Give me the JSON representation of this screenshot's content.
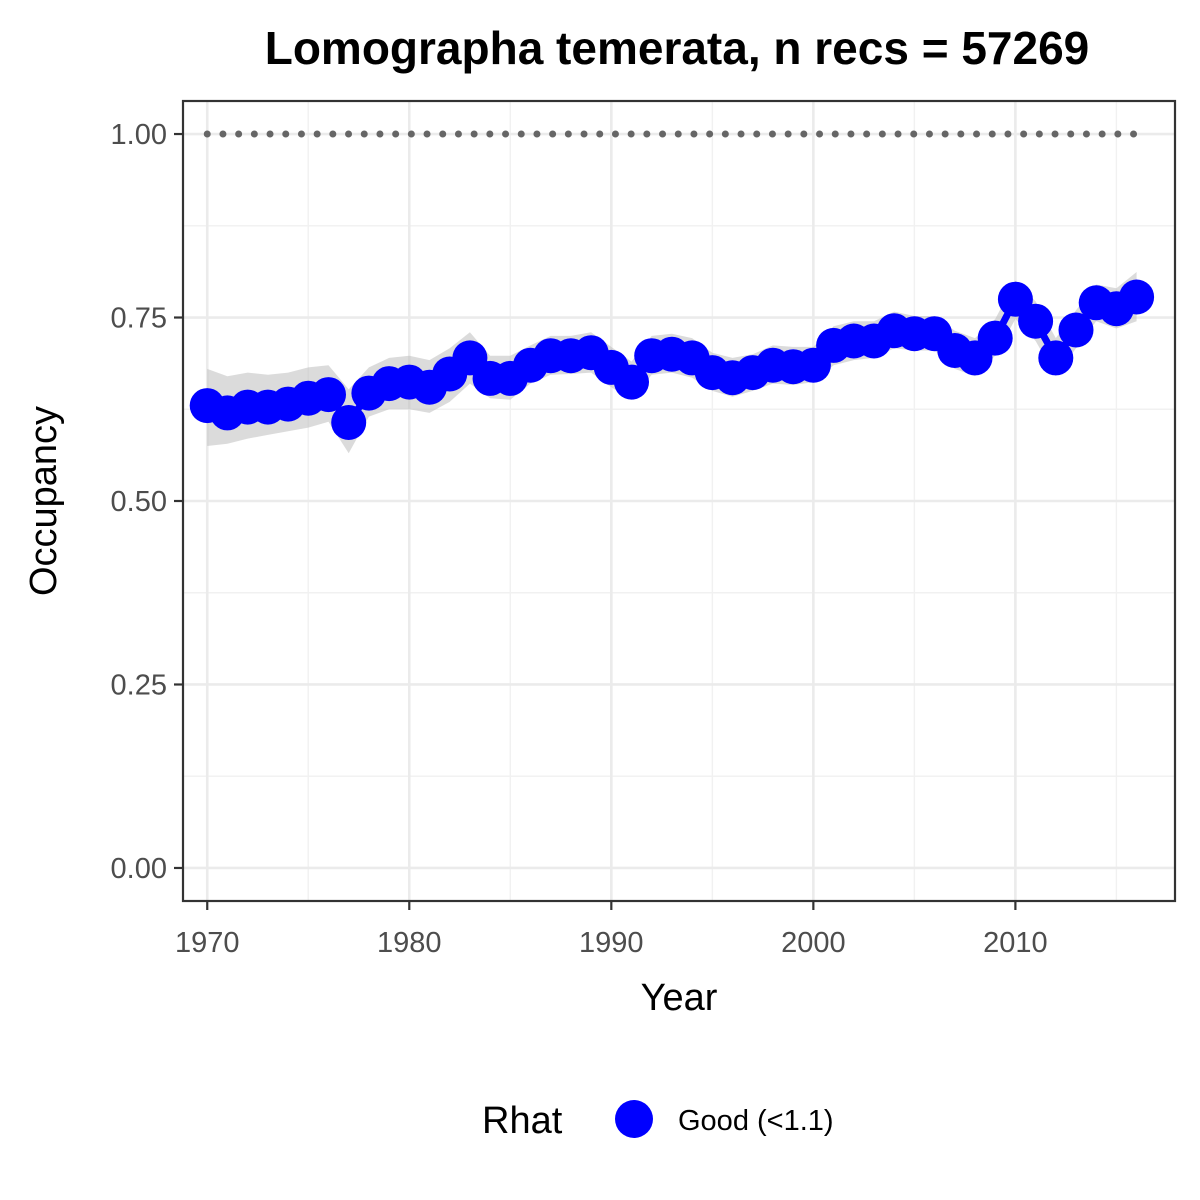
{
  "chart_data": {
    "type": "line",
    "title": "Lomographa temerata, n recs = 57269",
    "xlabel": "Year",
    "ylabel": "Occupancy",
    "xlim": [
      1968.8,
      2017.9
    ],
    "ylim": [
      -0.045,
      1.045
    ],
    "x_ticks": [
      1970,
      1980,
      1990,
      2000,
      2010
    ],
    "x_tick_labels": [
      "1970",
      "1980",
      "1990",
      "2000",
      "2010"
    ],
    "x_minor_ticks": [
      1975,
      1985,
      1995,
      2005,
      2015
    ],
    "y_ticks": [
      0,
      0.25,
      0.5,
      0.75,
      1.0
    ],
    "y_tick_labels": [
      "0.00",
      "0.25",
      "0.50",
      "0.75",
      "1.00"
    ],
    "y_minor_ticks": [
      0.125,
      0.375,
      0.625,
      0.875
    ],
    "grid": true,
    "reference_line": {
      "y": 1.0,
      "style": "dotted",
      "color": "#666666",
      "x_range": [
        1970,
        2016
      ]
    },
    "series": [
      {
        "name": "Good (<1.1)",
        "color": "#0000ff",
        "x": [
          1970,
          1971,
          1972,
          1973,
          1974,
          1975,
          1976,
          1977,
          1978,
          1979,
          1980,
          1981,
          1982,
          1983,
          1984,
          1985,
          1986,
          1987,
          1988,
          1989,
          1990,
          1991,
          1992,
          1993,
          1994,
          1995,
          1996,
          1997,
          1998,
          1999,
          2000,
          2001,
          2002,
          2003,
          2004,
          2005,
          2006,
          2007,
          2008,
          2009,
          2010,
          2011,
          2012,
          2013,
          2014,
          2015,
          2016
        ],
        "values": [
          0.63,
          0.62,
          0.628,
          0.628,
          0.632,
          0.64,
          0.645,
          0.607,
          0.647,
          0.66,
          0.662,
          0.655,
          0.673,
          0.695,
          0.667,
          0.667,
          0.685,
          0.698,
          0.698,
          0.702,
          0.682,
          0.662,
          0.698,
          0.7,
          0.695,
          0.675,
          0.668,
          0.675,
          0.685,
          0.683,
          0.685,
          0.712,
          0.718,
          0.718,
          0.732,
          0.728,
          0.728,
          0.705,
          0.695,
          0.722,
          0.775,
          0.745,
          0.695,
          0.733,
          0.77,
          0.762,
          0.778
        ],
        "lower": [
          0.575,
          0.578,
          0.585,
          0.59,
          0.595,
          0.6,
          0.608,
          0.565,
          0.615,
          0.625,
          0.625,
          0.62,
          0.635,
          0.66,
          0.64,
          0.638,
          0.66,
          0.672,
          0.673,
          0.675,
          0.655,
          0.638,
          0.672,
          0.675,
          0.668,
          0.65,
          0.642,
          0.65,
          0.66,
          0.658,
          0.662,
          0.685,
          0.692,
          0.695,
          0.708,
          0.705,
          0.705,
          0.68,
          0.67,
          0.698,
          0.748,
          0.718,
          0.67,
          0.708,
          0.745,
          0.735,
          0.745
        ],
        "upper": [
          0.68,
          0.67,
          0.675,
          0.672,
          0.675,
          0.682,
          0.685,
          0.652,
          0.682,
          0.695,
          0.698,
          0.692,
          0.708,
          0.73,
          0.698,
          0.698,
          0.712,
          0.725,
          0.725,
          0.73,
          0.71,
          0.69,
          0.725,
          0.728,
          0.722,
          0.702,
          0.695,
          0.7,
          0.712,
          0.71,
          0.71,
          0.738,
          0.745,
          0.745,
          0.758,
          0.752,
          0.752,
          0.732,
          0.722,
          0.748,
          0.8,
          0.772,
          0.722,
          0.76,
          0.795,
          0.79,
          0.812
        ]
      }
    ],
    "legend": {
      "title": "Rhat",
      "entries": [
        "Good (<1.1)"
      ],
      "position": "bottom",
      "marker_color": "#0000ff"
    }
  }
}
